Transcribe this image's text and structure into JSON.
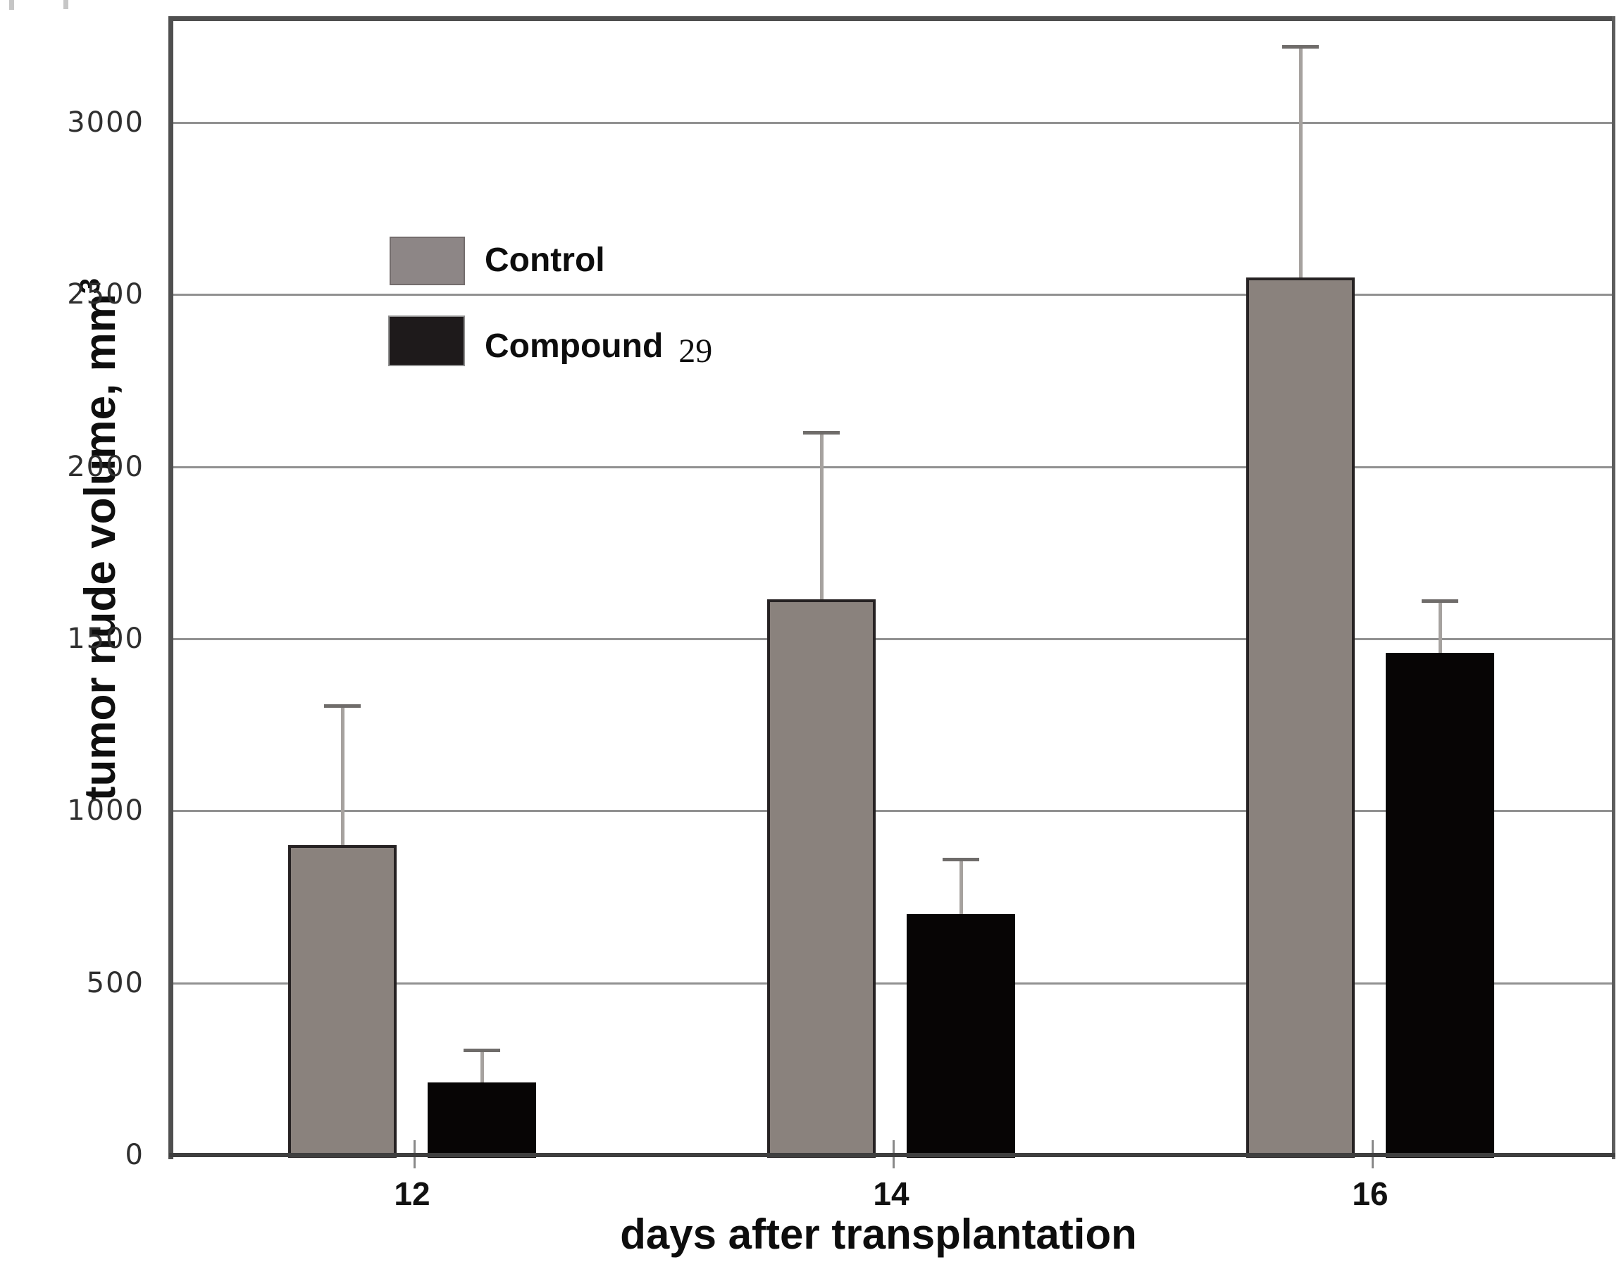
{
  "chart_data": {
    "type": "bar",
    "title": "",
    "xlabel": "days after transplantation",
    "ylabel": "tumor nude volume, mm³",
    "ylabel_main": "tumor nude volume, mm",
    "ylabel_sup": "3",
    "categories": [
      "12",
      "14",
      "16"
    ],
    "series": [
      {
        "name": "Control",
        "color": "#8a827d",
        "border_color": "#262223",
        "values": [
          900,
          1615,
          2550
        ],
        "error_plus": [
          405,
          485,
          670
        ]
      },
      {
        "name": "Compound 29",
        "color": "#070505",
        "border_color": "#070505",
        "values": [
          210,
          700,
          1460
        ],
        "error_plus": [
          95,
          160,
          150
        ]
      }
    ],
    "ylim": [
      0,
      3300
    ],
    "yticks": [
      0,
      500,
      1000,
      1500,
      2000,
      2500,
      3000
    ],
    "grid": "horizontal",
    "grid_color": "#919191",
    "error_bar_color": "#a6a29f",
    "legend_position": "upper-left-inside"
  },
  "axes": {
    "x_title": "days after transplantation",
    "y_title_main": "tumor nude volume, mm",
    "y_title_sup": "3"
  },
  "legend": {
    "items": [
      {
        "main": "Control",
        "suffix": "",
        "swatch_color": "#8d8686"
      },
      {
        "main": "Compound",
        "suffix": "29",
        "swatch_color": "#1e1a1b"
      }
    ]
  }
}
